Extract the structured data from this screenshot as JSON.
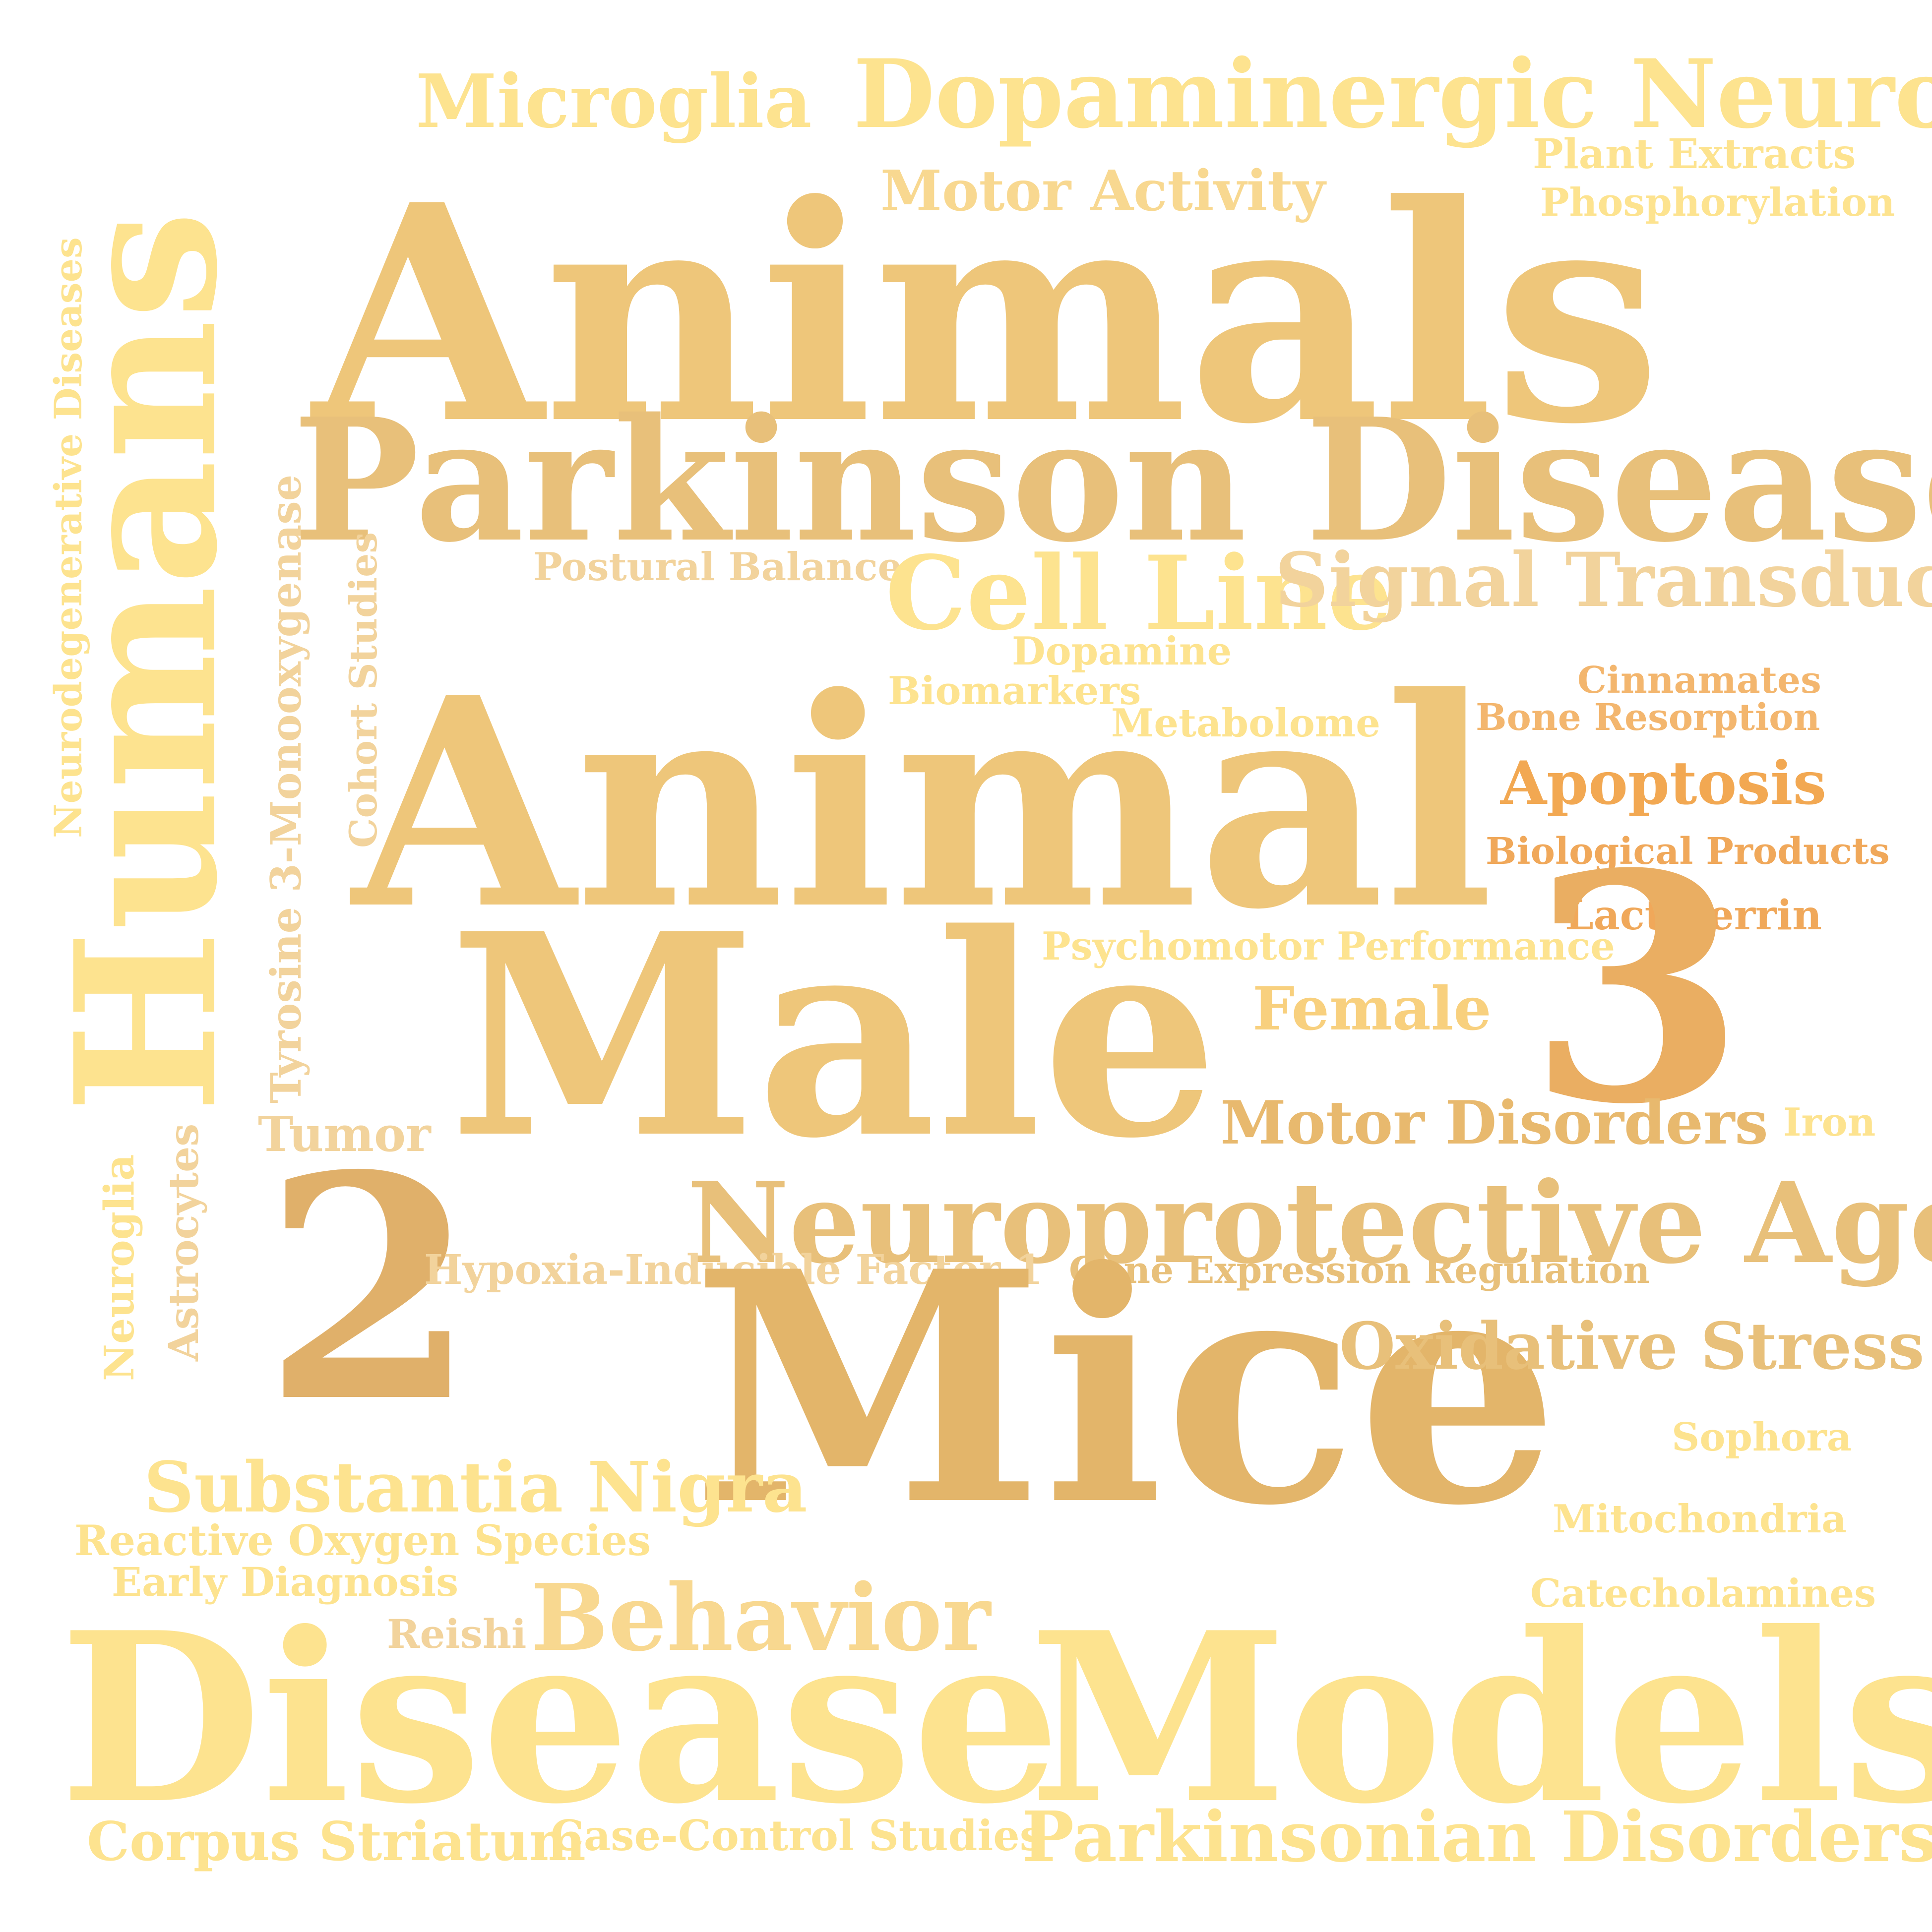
{
  "words": {
    "microglia": {
      "text": "Microglia",
      "color": "#fde38f"
    },
    "dopaminergic_neurons": {
      "text": "Dopaminergic Neurons",
      "color": "#fde38f"
    },
    "motor_activity": {
      "text": "Motor Activity",
      "color": "#f8d890"
    },
    "plant_extracts": {
      "text": "Plant Extracts",
      "color": "#fde38f"
    },
    "phosphorylation": {
      "text": "Phosphorylation",
      "color": "#fde38f"
    },
    "humans": {
      "text": "Humans",
      "color": "#fde38f"
    },
    "animals": {
      "text": "Animals",
      "color": "#eec67a"
    },
    "parkinson_disease": {
      "text": "Parkinson Disease",
      "color": "#e8c07a"
    },
    "neurodegenerative_diseases": {
      "text": "Neurodegenerative Diseases",
      "color": "#fde38f"
    },
    "tyrosine_monooxygenase": {
      "text": "Tyrosine 3-Monooxygenase",
      "color": "#f2d39c"
    },
    "cohort_studies": {
      "text": "Cohort Studies",
      "color": "#f2d39c"
    },
    "postural_balance": {
      "text": "Postural Balance",
      "color": "#f2d39c"
    },
    "cell_line": {
      "text": "Cell Line",
      "color": "#fde38f"
    },
    "signal_transduction": {
      "text": "Signal Transduction",
      "color": "#f2d39c"
    },
    "dopamine": {
      "text": "Dopamine",
      "color": "#fde38f"
    },
    "biomarkers": {
      "text": "Biomarkers",
      "color": "#fde38f"
    },
    "metabolome": {
      "text": "Metabolome",
      "color": "#fde38f"
    },
    "cinnamates": {
      "text": "Cinnamates",
      "color": "#f3b66e"
    },
    "bone_resorption": {
      "text": "Bone Resorption",
      "color": "#f3b66e"
    },
    "apoptosis": {
      "text": "Apoptosis",
      "color": "#f2a852"
    },
    "biological_products": {
      "text": "Biological Products",
      "color": "#f0a85a"
    },
    "lactoferrin": {
      "text": "Lactoferrin",
      "color": "#f0a85a"
    },
    "animal": {
      "text": "Animal",
      "color": "#eec67a"
    },
    "psychomotor_performance": {
      "text": "Psychomotor Performance",
      "color": "#fde38f"
    },
    "male": {
      "text": "Male",
      "color": "#eec67a"
    },
    "female": {
      "text": "Female",
      "color": "#f8d07e"
    },
    "three": {
      "text": "3",
      "color": "#eaae62"
    },
    "tumor": {
      "text": "Tumor",
      "color": "#f2d39c"
    },
    "motor_disorders": {
      "text": "Motor Disorders",
      "color": "#e8b96e"
    },
    "iron": {
      "text": "Iron",
      "color": "#fde38f"
    },
    "neuroglia": {
      "text": "Neuroglia",
      "color": "#fde38f"
    },
    "astrocytes": {
      "text": "Astrocytes",
      "color": "#f2d39c"
    },
    "two": {
      "text": "2",
      "color": "#e0b06a"
    },
    "neuroprotective_agents": {
      "text": "Neuroprotective Agents",
      "color": "#e8c07a"
    },
    "hypoxia_inducible": {
      "text": "Hypoxia-Inducible Factor 1",
      "color": "#f2d39c"
    },
    "gene_expression_regulation": {
      "text": "Gene Expression Regulation",
      "color": "#e8c07a"
    },
    "mice": {
      "text": "Mice",
      "color": "#e3b56a"
    },
    "oxidative_stress": {
      "text": "Oxidative Stress",
      "color": "#e8c07a"
    },
    "sophora": {
      "text": "Sophora",
      "color": "#fde38f"
    },
    "substantia_nigra": {
      "text": "Substantia Nigra",
      "color": "#fde38f"
    },
    "mitochondria": {
      "text": "Mitochondria",
      "color": "#fde38f"
    },
    "reactive_oxygen_species": {
      "text": "Reactive Oxygen Species",
      "color": "#fde38f"
    },
    "early_diagnosis": {
      "text": "Early Diagnosis",
      "color": "#fde38f"
    },
    "catecholamines": {
      "text": "Catecholamines",
      "color": "#fde38f"
    },
    "reishi": {
      "text": "Reishi",
      "color": "#f2d39c"
    },
    "behavior": {
      "text": "Behavior",
      "color": "#f8d890"
    },
    "disease": {
      "text": "Disease",
      "color": "#fde38f"
    },
    "models": {
      "text": "Models",
      "color": "#fde38f"
    },
    "corpus_striatum": {
      "text": "Corpus Striatum",
      "color": "#fde38f"
    },
    "case_control_studies": {
      "text": "Case-Control Studies",
      "color": "#fde38f"
    },
    "parkinsonian_disorders": {
      "text": "Parkinsonian Disorders",
      "color": "#fde38f"
    }
  }
}
